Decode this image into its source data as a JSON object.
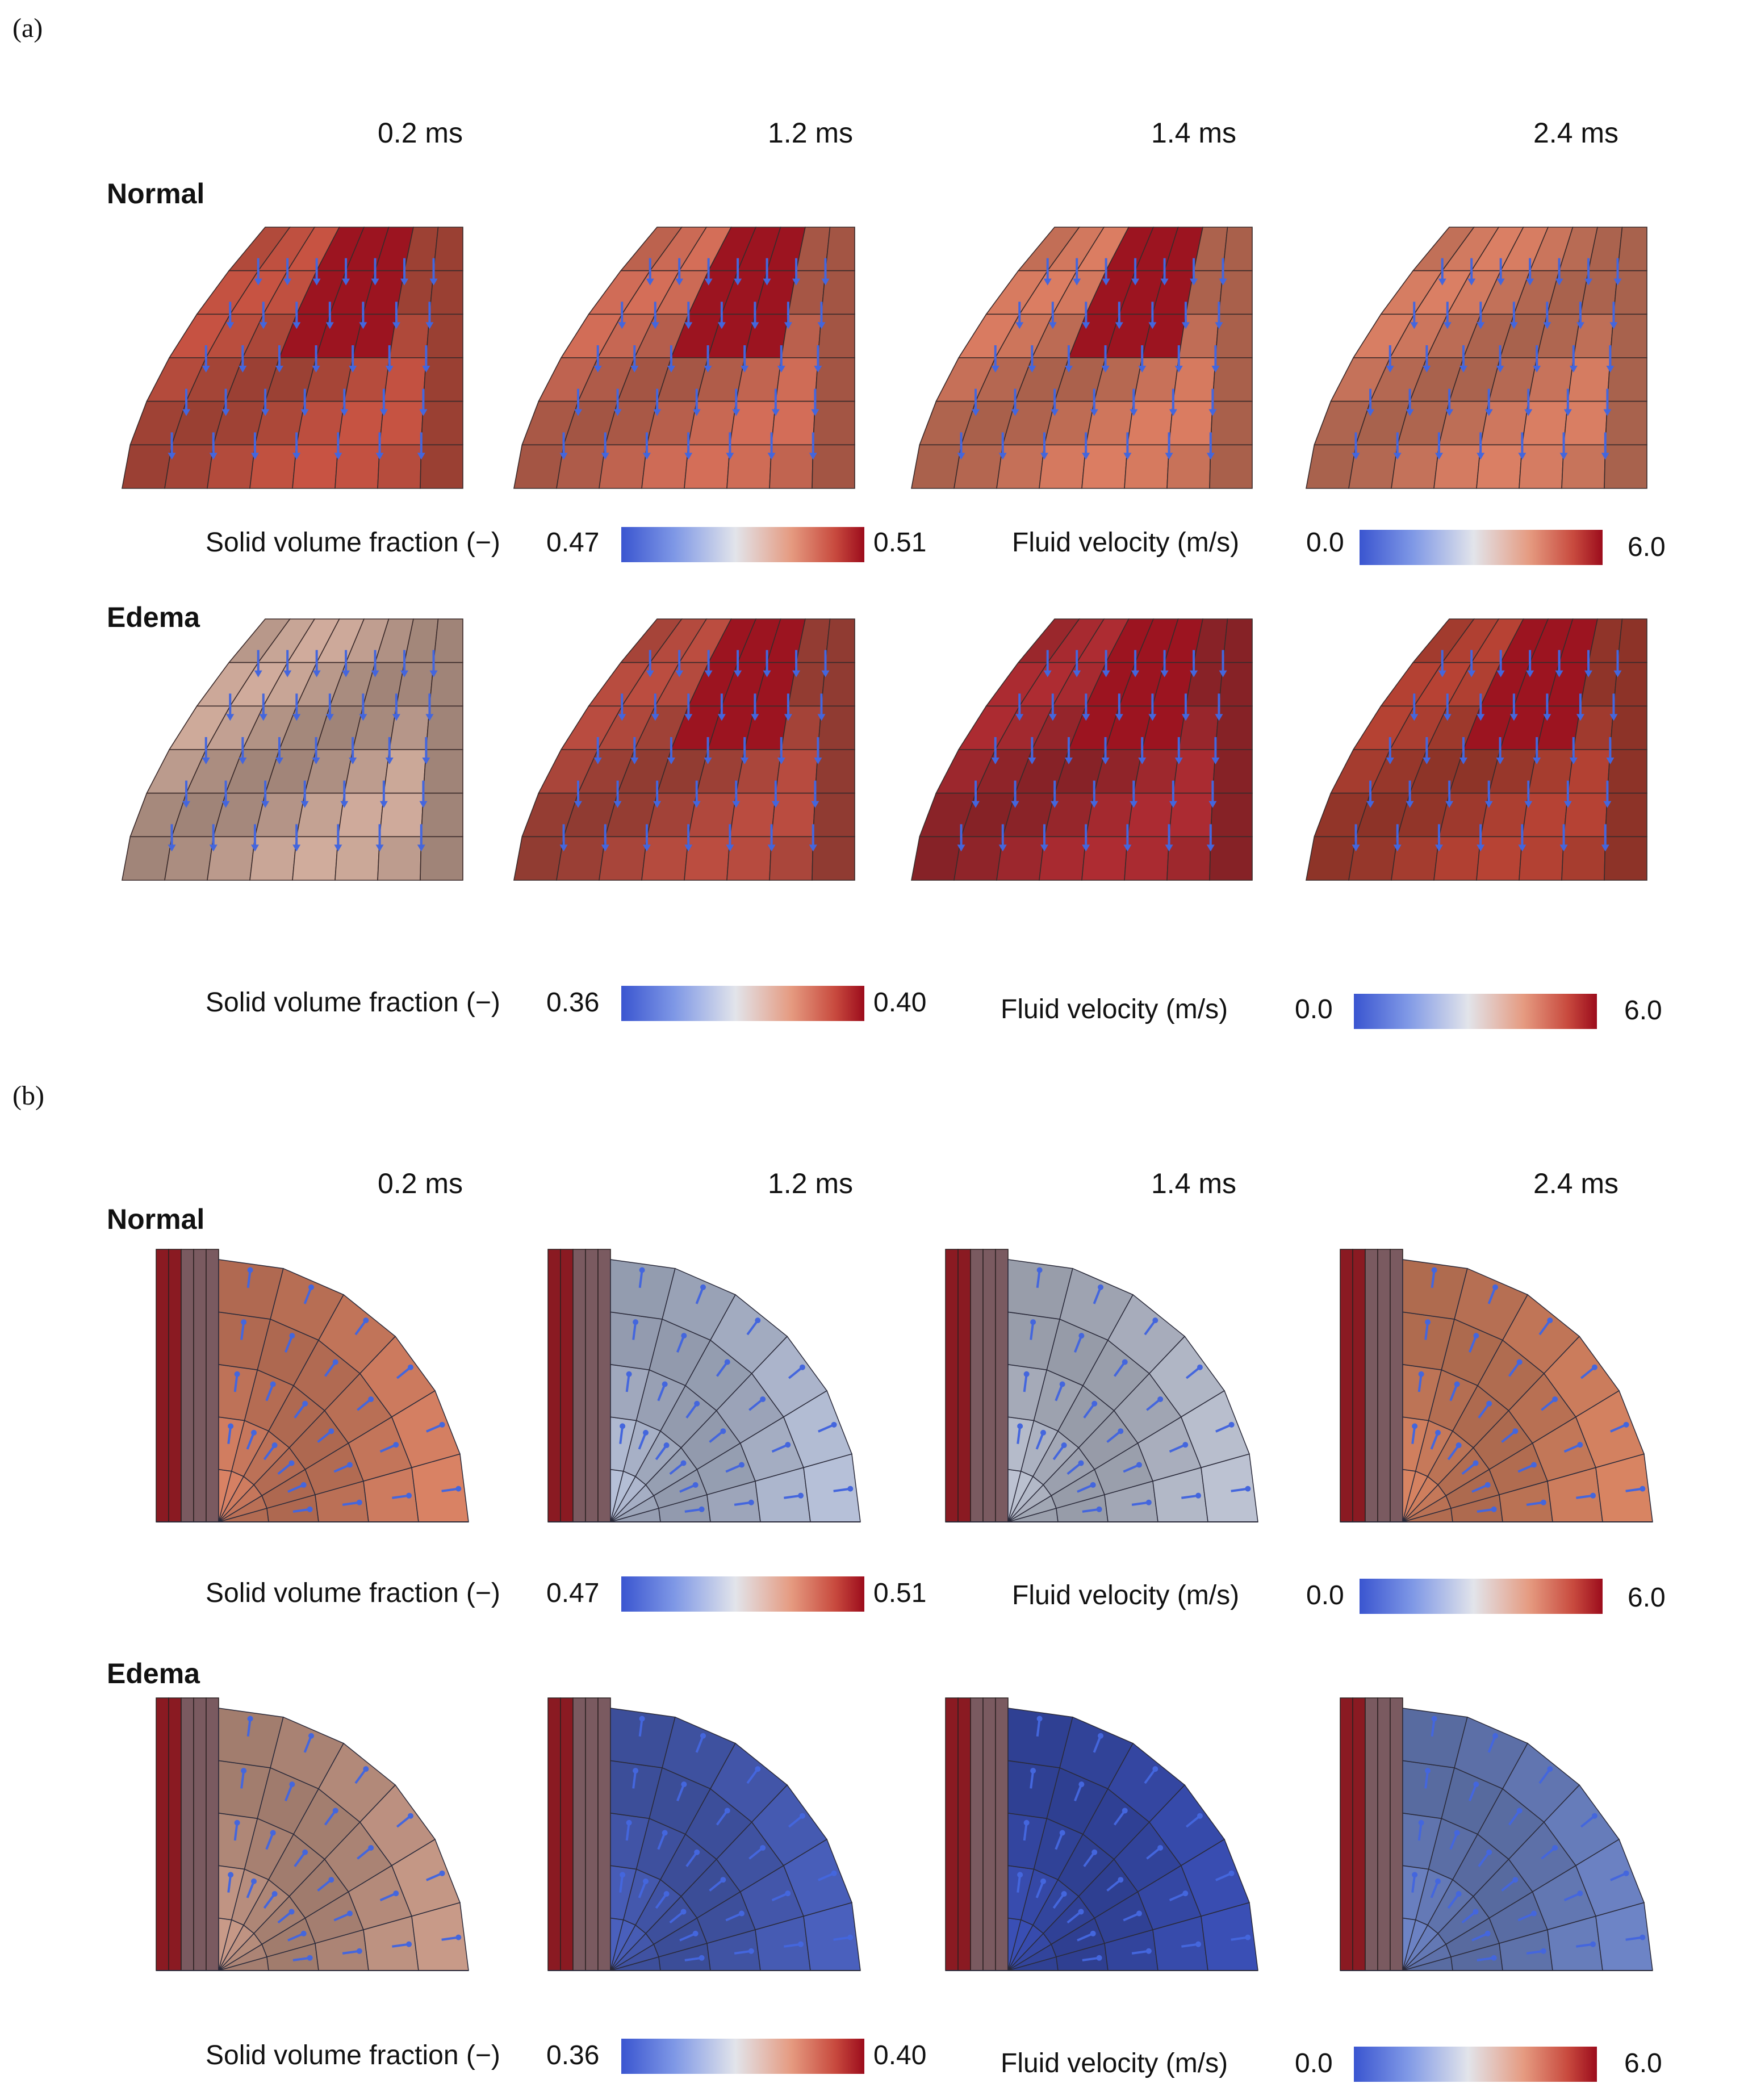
{
  "panels": [
    {
      "letter": "(a)",
      "time_labels": [
        "0.2 ms",
        "1.2 ms",
        "1.4 ms",
        "2.4 ms"
      ],
      "rows": [
        {
          "condition": "Normal",
          "solid_label": "Solid volume fraction (−)",
          "solid_min": "0.47",
          "solid_max": "0.51",
          "fluid_label": "Fluid velocity (m/s)",
          "fluid_min": "0.0",
          "fluid_max": "6.0"
        },
        {
          "condition": "Edema",
          "solid_label": "Solid volume fraction (−)",
          "solid_min": "0.36",
          "solid_max": "0.40",
          "fluid_label": "Fluid velocity (m/s)",
          "fluid_min": "0.0",
          "fluid_max": "6.0"
        }
      ]
    },
    {
      "letter": "(b)",
      "time_labels": [
        "0.2 ms",
        "1.2 ms",
        "1.4 ms",
        "2.4 ms"
      ],
      "rows": [
        {
          "condition": "Normal",
          "solid_label": "Solid volume fraction (−)",
          "solid_min": "0.47",
          "solid_max": "0.51",
          "fluid_label": "Fluid velocity (m/s)",
          "fluid_min": "0.0",
          "fluid_max": "6.0"
        },
        {
          "condition": "Edema",
          "solid_label": "Solid volume fraction (−)",
          "solid_min": "0.36",
          "solid_max": "0.40",
          "fluid_label": "Fluid velocity (m/s)",
          "fluid_min": "0.0",
          "fluid_max": "6.0"
        }
      ]
    }
  ],
  "colormap": [
    "#3a55d0",
    "#7f98e6",
    "#e2e4ea",
    "#e59a80",
    "#c84a3e",
    "#9c0c1c"
  ],
  "mesh_colors": {
    "a_normal": [
      "#c05040",
      "#cc6a55",
      "#d3785e",
      "#d27a60"
    ],
    "a_edema": [
      "#c8a596",
      "#b44a3e",
      "#a72a30",
      "#b04032"
    ],
    "b_normal": [
      "#d98264",
      "#b6c0d8",
      "#bcc2d2",
      "#d88462"
    ],
    "b_edema": [
      "#c89a88",
      "#4a60bd",
      "#3a4fb5",
      "#6d84c6"
    ]
  }
}
